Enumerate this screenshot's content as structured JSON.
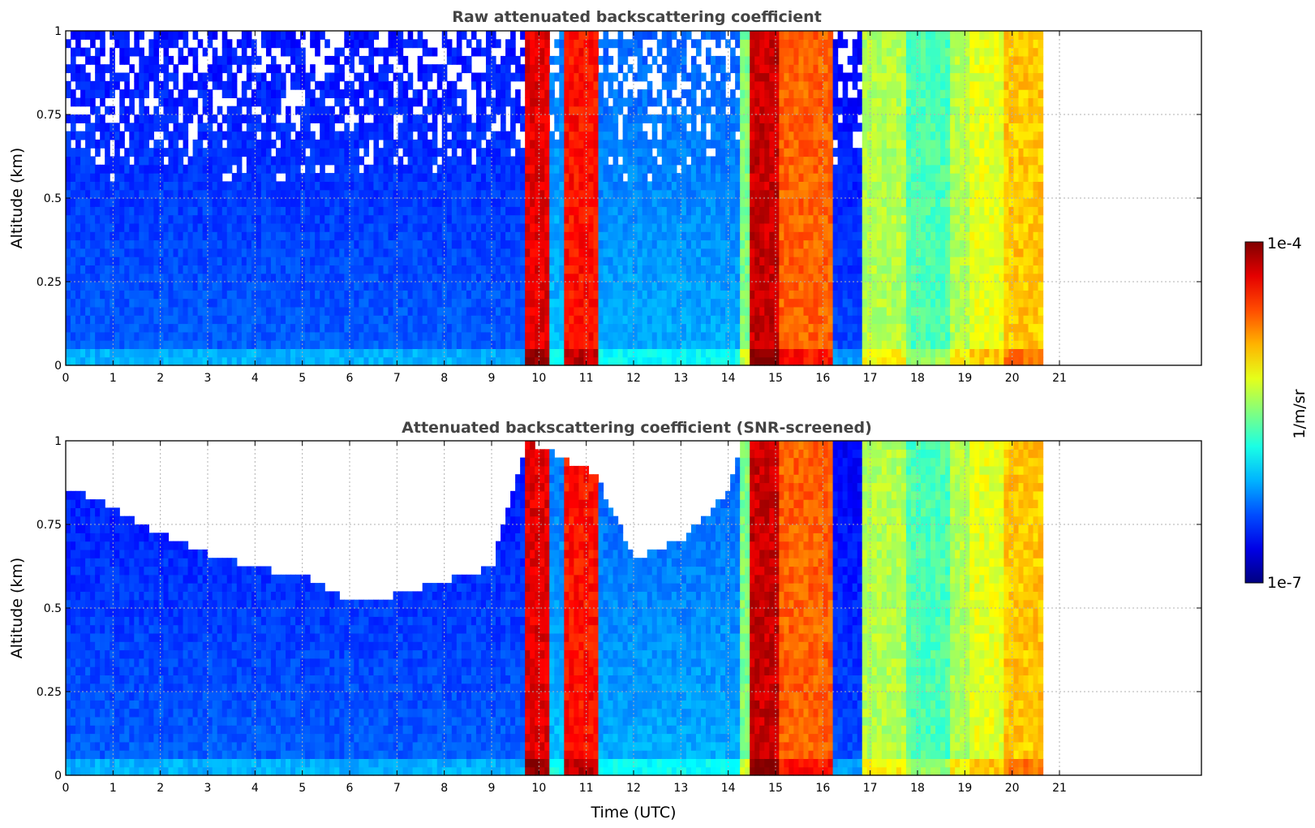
{
  "chart_data": [
    {
      "type": "heatmap",
      "title": "Raw attenuated backscattering coefficient",
      "xlabel": "",
      "ylabel": "Altitude (km)",
      "xlim": [
        0,
        24
      ],
      "ylim": [
        0,
        1
      ],
      "x_ticks": [
        0,
        1,
        2,
        3,
        4,
        5,
        6,
        7,
        8,
        9,
        10,
        11,
        12,
        13,
        14,
        15,
        16,
        17,
        18,
        19,
        20,
        21
      ],
      "y_ticks": [
        0,
        0.25,
        0.5,
        0.75,
        1
      ],
      "y_tick_labels": [
        "0",
        "0.25",
        "0.5",
        "0.75",
        "1"
      ],
      "grid": true,
      "data_extent_hours": [
        0,
        20.65
      ],
      "screened": false,
      "z_scale": "log",
      "z_range": [
        1e-07,
        0.0001
      ],
      "colormap": "jet",
      "segments": [
        {
          "t": [
            0,
            9.75
          ],
          "level": 0.22
        },
        {
          "t": [
            9.75,
            10.25
          ],
          "level": 0.9
        },
        {
          "t": [
            10.25,
            10.55
          ],
          "level": 0.32
        },
        {
          "t": [
            10.55,
            11.25
          ],
          "level": 0.86
        },
        {
          "t": [
            11.25,
            14.3
          ],
          "level": 0.3
        },
        {
          "t": [
            14.3,
            14.5
          ],
          "level": 0.5
        },
        {
          "t": [
            14.5,
            15.1
          ],
          "level": 0.93
        },
        {
          "t": [
            15.1,
            16.25
          ],
          "level": 0.78
        },
        {
          "t": [
            16.25,
            16.8
          ],
          "level": 0.2
        },
        {
          "t": [
            16.8,
            17.8
          ],
          "level": 0.55
        },
        {
          "t": [
            17.8,
            18.7
          ],
          "level": 0.45
        },
        {
          "t": [
            18.7,
            19.05
          ],
          "level": 0.55
        },
        {
          "t": [
            19.05,
            19.8
          ],
          "level": 0.6
        },
        {
          "t": [
            19.8,
            20.65
          ],
          "level": 0.68
        }
      ]
    },
    {
      "type": "heatmap",
      "title": "Attenuated backscattering coefficient (SNR-screened)",
      "xlabel": "Time (UTC)",
      "ylabel": "Altitude (km)",
      "xlim": [
        0,
        24
      ],
      "ylim": [
        0,
        1
      ],
      "x_ticks": [
        0,
        1,
        2,
        3,
        4,
        5,
        6,
        7,
        8,
        9,
        10,
        11,
        12,
        13,
        14,
        15,
        16,
        17,
        18,
        19,
        20,
        21
      ],
      "y_ticks": [
        0,
        0.25,
        0.5,
        0.75,
        1
      ],
      "y_tick_labels": [
        "0",
        "0.25",
        "0.5",
        "0.75",
        "1"
      ],
      "grid": true,
      "data_extent_hours": [
        0,
        20.65
      ],
      "screened": true,
      "z_scale": "log",
      "z_range": [
        1e-07,
        0.0001
      ],
      "colormap": "jet",
      "screen_top_km": [
        [
          0,
          0.86
        ],
        [
          1,
          0.8
        ],
        [
          2,
          0.72
        ],
        [
          3,
          0.66
        ],
        [
          4,
          0.62
        ],
        [
          5,
          0.6
        ],
        [
          6,
          0.52
        ],
        [
          7,
          0.54
        ],
        [
          8,
          0.58
        ],
        [
          9,
          0.62
        ],
        [
          9.75,
          1
        ],
        [
          11.2,
          0.9
        ],
        [
          12,
          0.65
        ],
        [
          13,
          0.7
        ],
        [
          14,
          0.85
        ],
        [
          14.3,
          1
        ],
        [
          16.8,
          1
        ],
        [
          20.65,
          1
        ]
      ]
    }
  ],
  "colorbar": {
    "max_label": "1e-4",
    "min_label": "1e-7",
    "label": "1/m/sr",
    "colors": [
      "#00007f",
      "#0000ff",
      "#007fff",
      "#00ffff",
      "#7fff7f",
      "#ffff00",
      "#ff7f00",
      "#ff0000",
      "#7f0000"
    ]
  }
}
